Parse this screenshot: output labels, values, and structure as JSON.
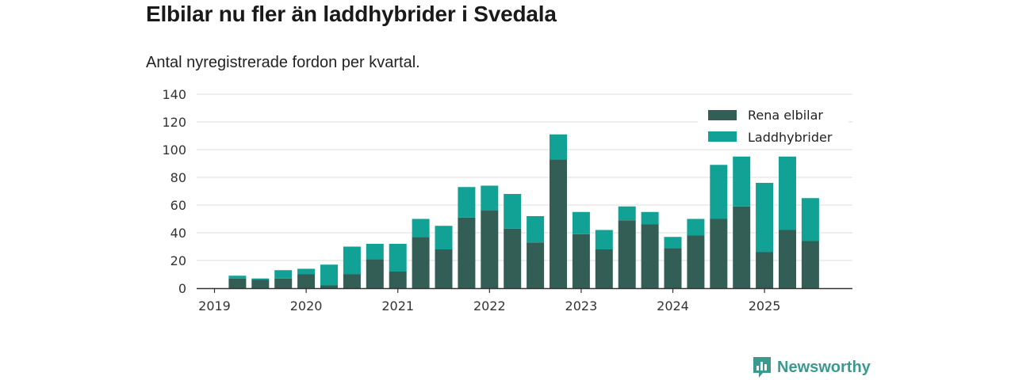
{
  "title": "Elbilar nu fler än laddhybrider i Svedala",
  "subtitle": "Antal nyregistrerade fordon per kvartal.",
  "brand": "Newsworthy",
  "colors": {
    "rena_elbilar": "#335e55",
    "laddhybrider": "#11a295",
    "grid": "#dddddd",
    "axis": "#333333",
    "brand": "#3a9a8e"
  },
  "chart_data": {
    "type": "bar",
    "stacked": true,
    "title": "Elbilar nu fler än laddhybrider i Svedala",
    "subtitle": "Antal nyregistrerade fordon per kvartal.",
    "xlabel": "",
    "ylabel": "",
    "ylim": [
      0,
      140
    ],
    "yticks": [
      0,
      20,
      40,
      60,
      80,
      100,
      120,
      140
    ],
    "xticks": [
      "2019",
      "2020",
      "2021",
      "2022",
      "2023",
      "2024",
      "2025"
    ],
    "grid": true,
    "legend_position": "top-right",
    "categories": [
      "2019 Q1",
      "2019 Q2",
      "2019 Q3",
      "2019 Q4",
      "2020 Q1",
      "2020 Q2",
      "2020 Q3",
      "2020 Q4",
      "2021 Q1",
      "2021 Q2",
      "2021 Q3",
      "2021 Q4",
      "2022 Q1",
      "2022 Q2",
      "2022 Q3",
      "2022 Q4",
      "2023 Q1",
      "2023 Q2",
      "2023 Q3",
      "2023 Q4",
      "2024 Q1",
      "2024 Q2",
      "2024 Q3",
      "2024 Q4",
      "2025 Q1",
      "2025 Q2",
      "2025 Q3",
      "2025 Q4"
    ],
    "series": [
      {
        "name": "Rena elbilar",
        "values": [
          0,
          7,
          6,
          7,
          10,
          2,
          10,
          21,
          12,
          37,
          28,
          51,
          56,
          43,
          33,
          93,
          39,
          28,
          49,
          46,
          29,
          38,
          50,
          59,
          26,
          42,
          34,
          null
        ]
      },
      {
        "name": "Laddhybrider",
        "values": [
          0,
          2,
          1,
          6,
          4,
          15,
          20,
          11,
          20,
          13,
          17,
          22,
          18,
          25,
          19,
          18,
          16,
          14,
          10,
          9,
          8,
          12,
          39,
          36,
          50,
          53,
          31,
          null
        ]
      }
    ]
  }
}
